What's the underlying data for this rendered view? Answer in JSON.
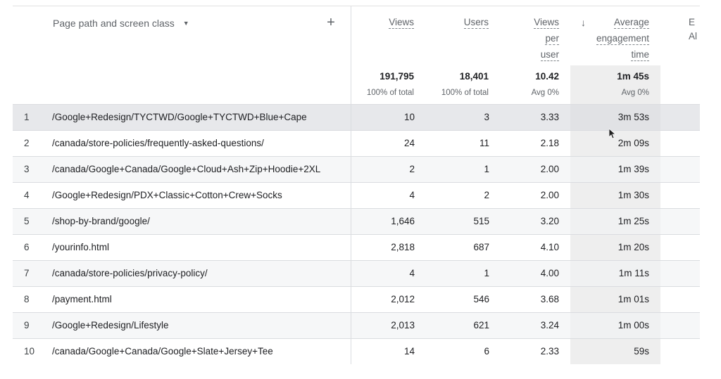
{
  "dimension_header": {
    "label": "Page path and screen class",
    "caret_icon": "caret-down-icon",
    "add_icon": "plus-icon"
  },
  "metric_headers": {
    "views": [
      "Views"
    ],
    "users": [
      "Users"
    ],
    "views_per_user": [
      "Views",
      "per",
      "user"
    ],
    "avg_engagement_time": [
      "Average",
      "engagement",
      "time"
    ],
    "cut_off": [
      "E",
      "Al"
    ]
  },
  "sort_icon": "arrow-down-icon",
  "totals": {
    "views": "191,795",
    "views_sub": "100% of total",
    "users": "18,401",
    "users_sub": "100% of total",
    "views_per_user": "10.42",
    "views_per_user_sub": "Avg 0%",
    "avg_engagement_time": "1m 45s",
    "avg_engagement_time_sub": "Avg 0%"
  },
  "rows": [
    {
      "idx": "1",
      "path": "/Google+Redesign/TYCTWD/Google+TYCTWD+Blue+Cape",
      "views": "10",
      "users": "3",
      "vpu": "3.33",
      "aet": "3m 53s"
    },
    {
      "idx": "2",
      "path": "/canada/store-policies/frequently-asked-questions/",
      "views": "24",
      "users": "11",
      "vpu": "2.18",
      "aet": "2m 09s"
    },
    {
      "idx": "3",
      "path": "/canada/Google+Canada/Google+Cloud+Ash+Zip+Hoodie+2XL",
      "views": "2",
      "users": "1",
      "vpu": "2.00",
      "aet": "1m 39s"
    },
    {
      "idx": "4",
      "path": "/Google+Redesign/PDX+Classic+Cotton+Crew+Socks",
      "views": "4",
      "users": "2",
      "vpu": "2.00",
      "aet": "1m 30s"
    },
    {
      "idx": "5",
      "path": "/shop-by-brand/google/",
      "views": "1,646",
      "users": "515",
      "vpu": "3.20",
      "aet": "1m 25s"
    },
    {
      "idx": "6",
      "path": "/yourinfo.html",
      "views": "2,818",
      "users": "687",
      "vpu": "4.10",
      "aet": "1m 20s"
    },
    {
      "idx": "7",
      "path": "/canada/store-policies/privacy-policy/",
      "views": "4",
      "users": "1",
      "vpu": "4.00",
      "aet": "1m 11s"
    },
    {
      "idx": "8",
      "path": "/payment.html",
      "views": "2,012",
      "users": "546",
      "vpu": "3.68",
      "aet": "1m 01s"
    },
    {
      "idx": "9",
      "path": "/Google+Redesign/Lifestyle",
      "views": "2,013",
      "users": "621",
      "vpu": "3.24",
      "aet": "1m 00s"
    },
    {
      "idx": "10",
      "path": "/canada/Google+Canada/Google+Slate+Jersey+Tee",
      "views": "14",
      "users": "6",
      "vpu": "2.33",
      "aet": "59s"
    }
  ],
  "colors": {
    "sorted_column": "#eeeeee",
    "row_alt": "#f1f3f4",
    "row_hover": "#dadce0",
    "text": "#202124",
    "muted": "#5f6368"
  }
}
